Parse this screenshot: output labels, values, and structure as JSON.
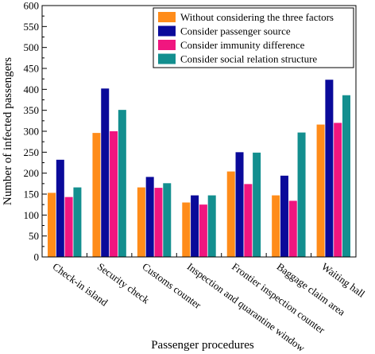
{
  "chart_data": {
    "type": "bar",
    "xlabel": "Passenger procedures",
    "ylabel": "Number of infected passengers",
    "ylim": [
      0,
      600
    ],
    "yticks": [
      0,
      50,
      100,
      150,
      200,
      250,
      300,
      350,
      400,
      450,
      500,
      550,
      600
    ],
    "grid": false,
    "legend_position": "top-right",
    "categories": [
      "Check-in island",
      "Security check",
      "Customs counter",
      "Inspection and quarantine window",
      "Frontier inspection counter",
      "Baggage claim area",
      "Waiting hall"
    ],
    "series": [
      {
        "name": "Without considering the three factors",
        "color": "#ff8c1a",
        "values": [
          153,
          296,
          166,
          130,
          204,
          147,
          316
        ]
      },
      {
        "name": "Consider passenger source",
        "color": "#0a0a9a",
        "values": [
          232,
          402,
          191,
          147,
          250,
          194,
          423
        ]
      },
      {
        "name": "Consider immunity difference",
        "color": "#f0167f",
        "values": [
          143,
          300,
          165,
          125,
          174,
          134,
          320
        ]
      },
      {
        "name": "Consider social relation structure",
        "color": "#138f8f",
        "values": [
          166,
          351,
          176,
          147,
          249,
          297,
          386
        ]
      }
    ]
  }
}
